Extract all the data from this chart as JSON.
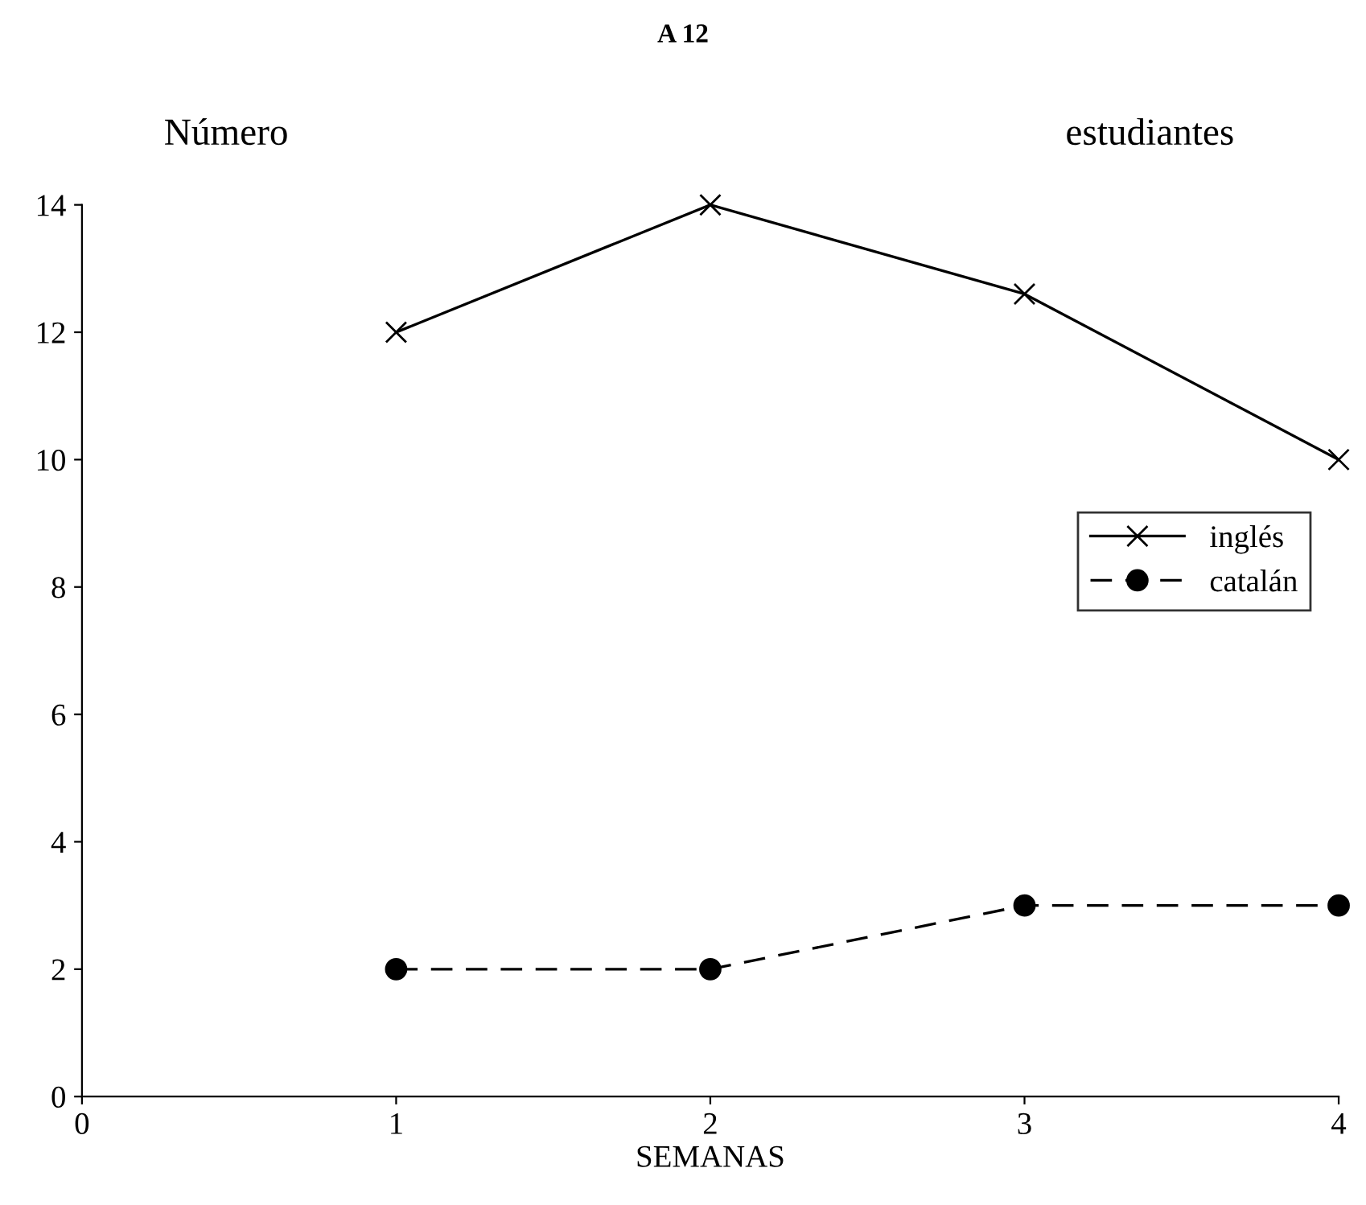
{
  "chart_data": {
    "type": "line",
    "title": "Número",
    "annotations": [
      "A 12",
      "estudiantes"
    ],
    "xlabel": "SEMANAS",
    "x": [
      1,
      2,
      3,
      4
    ],
    "xlim": [
      0,
      4
    ],
    "xticks": [
      0,
      1,
      2,
      3,
      4
    ],
    "ylim": [
      0,
      14
    ],
    "yticks": [
      0,
      2,
      4,
      6,
      8,
      10,
      12,
      14
    ],
    "series": [
      {
        "name": "inglés",
        "color": "#000000",
        "marker": "cross",
        "line_style": "solid",
        "values": [
          12,
          14,
          12.6,
          10
        ]
      },
      {
        "name": "catalán",
        "color": "#000000",
        "marker": "circle",
        "line_style": "dashed",
        "values": [
          2,
          2,
          3,
          3
        ]
      }
    ],
    "grid": false,
    "legend": "right"
  }
}
